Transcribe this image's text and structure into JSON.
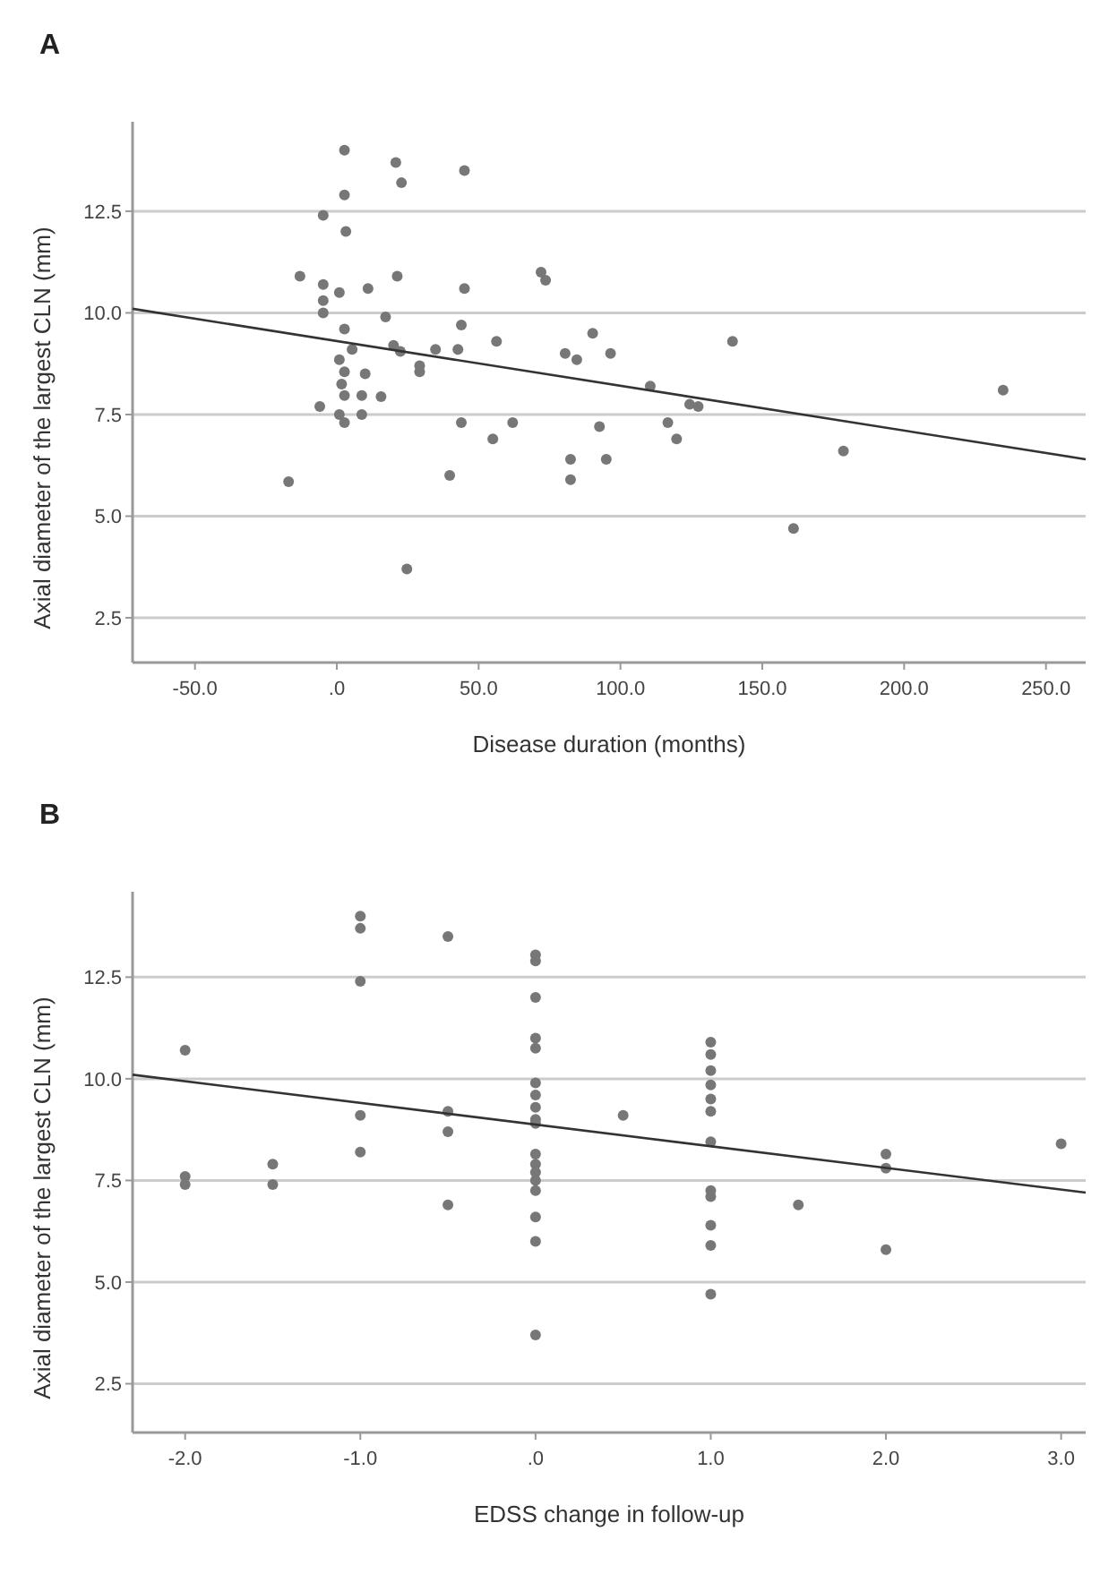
{
  "chart_data": [
    {
      "type": "scatter",
      "title": "A",
      "xlabel": "Disease duration (months)",
      "ylabel": "Axial diameter of the largest CLN (mm)",
      "xlim": [
        -72,
        264
      ],
      "ylim": [
        1.4,
        14.7
      ],
      "xticks": [
        {
          "value": -50,
          "label": "-50.0"
        },
        {
          "value": 0,
          "label": ".0"
        },
        {
          "value": 50,
          "label": "50.0"
        },
        {
          "value": 100,
          "label": "100.0"
        },
        {
          "value": 150,
          "label": "150.0"
        },
        {
          "value": 200,
          "label": "200.0"
        },
        {
          "value": 250,
          "label": "250.0"
        }
      ],
      "yticks": [
        {
          "value": 2.5,
          "label": "2.5"
        },
        {
          "value": 5,
          "label": "5.0"
        },
        {
          "value": 7.5,
          "label": "7.5"
        },
        {
          "value": 10,
          "label": "10.0"
        },
        {
          "value": 12.5,
          "label": "12.5"
        }
      ],
      "grid": "y",
      "series": [
        {
          "marker": "circle",
          "color": "#777777",
          "x": [
            2.7,
            20.8,
            22.8,
            45,
            2.7,
            -4.8,
            3.2,
            -13,
            -4.8,
            0.9,
            11,
            21.3,
            45,
            72,
            73.6,
            -4.8,
            -4.8,
            17.2,
            2.7,
            43.9,
            5.4,
            20,
            22.4,
            34.8,
            42.7,
            56.3,
            29.2,
            29.2,
            0.9,
            2.7,
            10,
            1.7,
            2.7,
            8.8,
            15.6,
            -6,
            0.9,
            2.7,
            8.8,
            43.9,
            62,
            55,
            -17,
            39.8,
            82.4,
            82.4,
            24.7,
            80.5,
            84.6,
            90.2,
            96.5,
            92.6,
            95,
            110.5,
            116.7,
            119.8,
            124.4,
            127.4,
            139.5,
            161,
            178.6,
            234.9
          ],
          "values": [
            14.0,
            13.7,
            13.2,
            13.5,
            12.9,
            12.4,
            12.0,
            10.9,
            10.7,
            10.5,
            10.6,
            10.9,
            10.6,
            11.0,
            10.8,
            10.3,
            10.0,
            9.9,
            9.6,
            9.7,
            9.1,
            9.2,
            9.05,
            9.1,
            9.1,
            9.3,
            8.7,
            8.55,
            8.85,
            8.55,
            8.5,
            8.25,
            7.97,
            7.97,
            7.94,
            7.7,
            7.5,
            7.3,
            7.5,
            7.3,
            7.3,
            6.9,
            5.85,
            6.0,
            6.4,
            5.9,
            3.7,
            9.0,
            8.85,
            9.5,
            9.0,
            7.2,
            6.4,
            8.2,
            7.3,
            6.9,
            7.75,
            7.7,
            9.3,
            4.7,
            6.6,
            8.1
          ]
        },
        {
          "type": "line",
          "color": "#333333",
          "x": [
            -72,
            264
          ],
          "values": [
            10.1,
            6.4
          ]
        }
      ]
    },
    {
      "type": "scatter",
      "title": "B",
      "xlabel": "EDSS change in follow-up",
      "ylabel": "Axial diameter of the largest CLN (mm)",
      "xlim": [
        -2.3,
        3.14
      ],
      "ylim": [
        1.3,
        14.6
      ],
      "xticks": [
        {
          "value": -2,
          "label": "-2.0"
        },
        {
          "value": -1,
          "label": "-1.0"
        },
        {
          "value": 0,
          "label": ".0"
        },
        {
          "value": 1,
          "label": "1.0"
        },
        {
          "value": 2,
          "label": "2.0"
        },
        {
          "value": 3,
          "label": "3.0"
        }
      ],
      "yticks": [
        {
          "value": 2.5,
          "label": "2.5"
        },
        {
          "value": 5,
          "label": "5.0"
        },
        {
          "value": 7.5,
          "label": "7.5"
        },
        {
          "value": 10,
          "label": "10.0"
        },
        {
          "value": 12.5,
          "label": "12.5"
        }
      ],
      "grid": "y",
      "series": [
        {
          "marker": "circle",
          "color": "#777777",
          "x": [
            -2,
            -2,
            -2,
            -1.5,
            -1.5,
            -1,
            -1,
            -1,
            -1,
            -1,
            -0.5,
            -0.5,
            -0.5,
            -0.5,
            0,
            0,
            0,
            0,
            0,
            0,
            0,
            0,
            0,
            0,
            0,
            0,
            0,
            0,
            0,
            0,
            0,
            0,
            0.5,
            1,
            1,
            1,
            1,
            1,
            1,
            1,
            1,
            1,
            1,
            1,
            1,
            1.5,
            2,
            2,
            2,
            3
          ],
          "values": [
            10.7,
            7.6,
            7.4,
            7.9,
            7.4,
            14.0,
            13.7,
            12.4,
            9.1,
            8.2,
            13.5,
            9.2,
            8.7,
            6.9,
            13.05,
            12.9,
            12.0,
            11.0,
            10.75,
            9.9,
            9.6,
            9.3,
            9.0,
            8.9,
            8.15,
            7.9,
            7.7,
            7.5,
            7.25,
            6.6,
            6.0,
            3.7,
            9.1,
            10.9,
            10.6,
            10.2,
            9.85,
            9.5,
            9.2,
            8.45,
            7.25,
            7.1,
            6.4,
            5.9,
            4.7,
            6.9,
            8.15,
            7.8,
            5.8,
            8.4
          ]
        },
        {
          "type": "line",
          "color": "#333333",
          "x": [
            -2.3,
            3.14
          ],
          "values": [
            10.1,
            7.2
          ]
        }
      ]
    }
  ]
}
